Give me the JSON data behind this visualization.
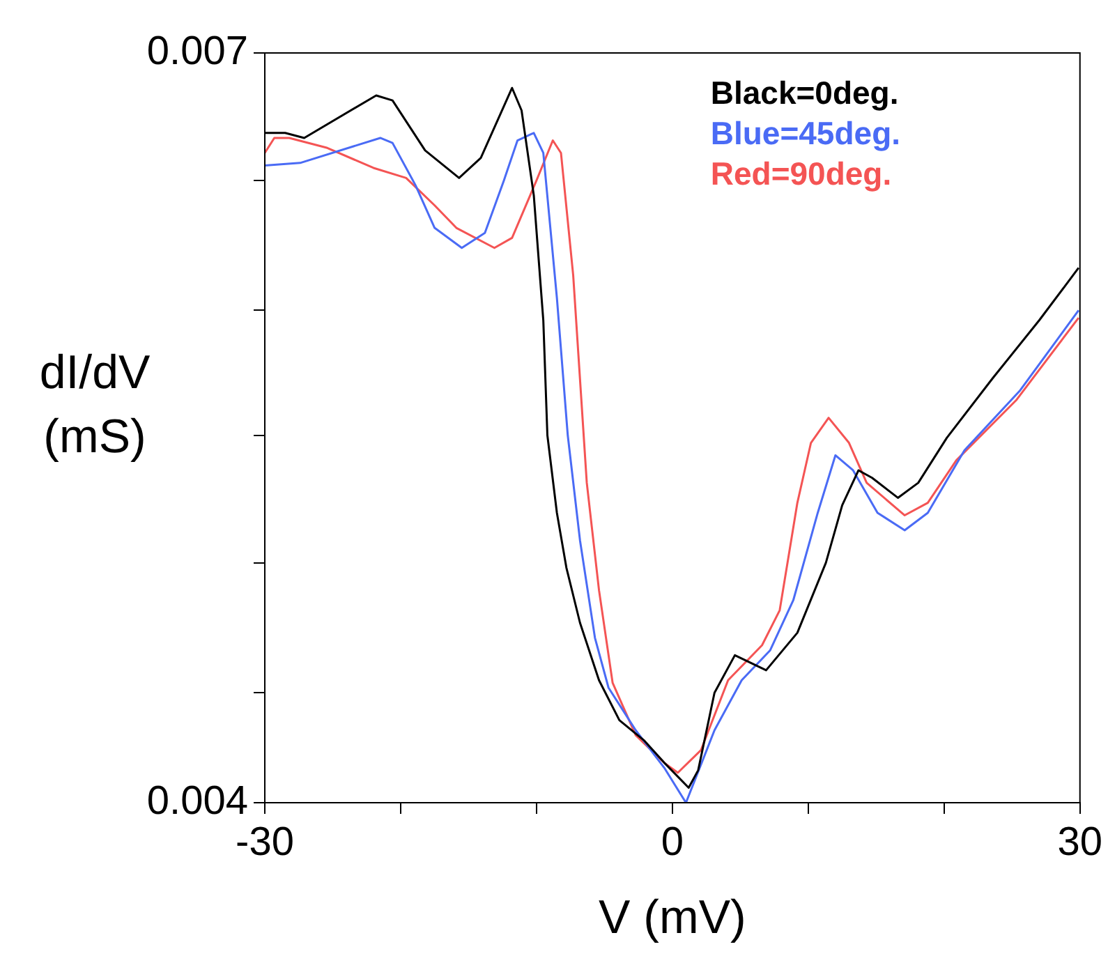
{
  "chart_data": {
    "type": "line",
    "xlabel": "V (mV)",
    "ylabel": "dI/dV (mS)",
    "xlim": [
      -30,
      30
    ],
    "xticks": [
      -30,
      {
        "value": -20,
        "label": null
      },
      {
        "value": -10,
        "label": null
      },
      0,
      {
        "value": 10,
        "label": null
      },
      {
        "value": 20,
        "label": null
      },
      30
    ],
    "ylim": [
      0.004,
      0.007
    ],
    "yticks": [
      0.004,
      {
        "value": 0.00444,
        "label": null
      },
      {
        "value": 0.00496,
        "label": null
      },
      {
        "value": 0.00547,
        "label": null
      },
      {
        "value": 0.00597,
        "label": null
      },
      {
        "value": 0.00649,
        "label": null
      },
      0.007
    ],
    "grid": false,
    "legend": "top right",
    "marker": "none",
    "line_style": "solid",
    "series": [
      {
        "name": "Black=0deg.",
        "color": "#000000",
        "x": [
          -30,
          -28.5,
          -27.1,
          -21.8,
          -20.6,
          -18.2,
          -15.7,
          -14.1,
          -11.8,
          -11.1,
          -10.2,
          -9.5,
          -9.2,
          -8.5,
          -7.8,
          -6.8,
          -5.4,
          -3.9,
          -2.1,
          -0.6,
          1.2,
          1.9,
          3.1,
          4.6,
          6.9,
          9.2,
          11.3,
          12.5,
          13.7,
          14.7,
          16.6,
          18.1,
          20.2,
          23.6,
          27.0,
          29.9
        ],
        "values": [
          0.00668,
          0.00668,
          0.00666,
          0.00683,
          0.00681,
          0.00661,
          0.0065,
          0.00658,
          0.00686,
          0.00677,
          0.00643,
          0.00593,
          0.00547,
          0.00516,
          0.00494,
          0.00472,
          0.00449,
          0.00433,
          0.00425,
          0.00416,
          0.00406,
          0.00413,
          0.00444,
          0.00459,
          0.00453,
          0.00468,
          0.00496,
          0.00519,
          0.00533,
          0.0053,
          0.00522,
          0.00528,
          0.00546,
          0.0057,
          0.00593,
          0.00614
        ]
      },
      {
        "name": "Blue=45deg.",
        "color": "#4a6bf5",
        "x": [
          -30,
          -27.4,
          -21.5,
          -20.6,
          -18.9,
          -17.5,
          -15.5,
          -13.8,
          -12.4,
          -11.4,
          -10.2,
          -9.5,
          -8.5,
          -7.7,
          -6.8,
          -5.7,
          -4.7,
          -2.7,
          -0.6,
          1.0,
          3.1,
          5.1,
          7.2,
          8.9,
          10.7,
          12.0,
          13.3,
          15.1,
          17.1,
          18.8,
          21.5,
          25.6,
          29.9
        ],
        "values": [
          0.00655,
          0.00656,
          0.00666,
          0.00664,
          0.00647,
          0.0063,
          0.00622,
          0.00628,
          0.00649,
          0.00665,
          0.00668,
          0.0066,
          0.00602,
          0.00547,
          0.00505,
          0.00466,
          0.00446,
          0.00429,
          0.00414,
          0.004,
          0.00429,
          0.00449,
          0.00461,
          0.00481,
          0.00516,
          0.00539,
          0.00533,
          0.00516,
          0.00509,
          0.00516,
          0.00541,
          0.00565,
          0.00597
        ]
      },
      {
        "name": "Red=90deg.",
        "color": "#f45454",
        "x": [
          -30,
          -29.3,
          -28.2,
          -25.4,
          -22.0,
          -19.6,
          -17.5,
          -15.9,
          -13.1,
          -11.8,
          -10.0,
          -8.8,
          -8.2,
          -7.3,
          -6.3,
          -5.4,
          -4.4,
          -2.7,
          -0.6,
          0.4,
          2.1,
          4.1,
          6.6,
          7.9,
          9.2,
          10.2,
          11.5,
          13.0,
          14.3,
          17.1,
          18.8,
          20.9,
          25.3,
          29.9
        ],
        "values": [
          0.0066,
          0.00666,
          0.00666,
          0.00662,
          0.00654,
          0.0065,
          0.00639,
          0.0063,
          0.00622,
          0.00626,
          0.00649,
          0.00665,
          0.0066,
          0.00611,
          0.00528,
          0.00485,
          0.00448,
          0.00427,
          0.00416,
          0.00412,
          0.00421,
          0.00449,
          0.00463,
          0.00477,
          0.0052,
          0.00544,
          0.00554,
          0.00544,
          0.00528,
          0.00515,
          0.0052,
          0.00537,
          0.00561,
          0.00594
        ]
      }
    ]
  }
}
